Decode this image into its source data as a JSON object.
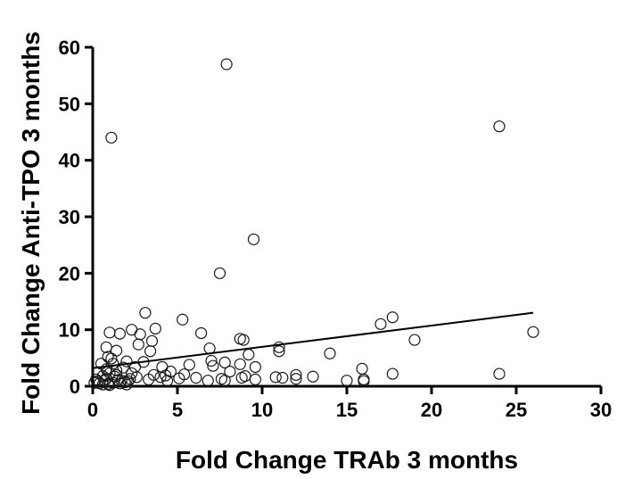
{
  "chart_data": {
    "type": "scatter",
    "xlabel": "Fold Change TRAb 3 months",
    "ylabel": "Fold Change Anti-TPO 3 months",
    "xlim": [
      0,
      30
    ],
    "ylim": [
      0,
      60
    ],
    "xticks": [
      0,
      5,
      10,
      15,
      20,
      25,
      30
    ],
    "yticks": [
      0,
      10,
      20,
      30,
      40,
      50,
      60
    ],
    "marker": "open-circle",
    "trendline": {
      "x": [
        0,
        26
      ],
      "y": [
        3.2,
        13.0
      ]
    },
    "points": [
      {
        "x": 7.9,
        "y": 57
      },
      {
        "x": 24.0,
        "y": 46
      },
      {
        "x": 1.1,
        "y": 44
      },
      {
        "x": 9.5,
        "y": 26
      },
      {
        "x": 7.5,
        "y": 20
      },
      {
        "x": 3.1,
        "y": 13
      },
      {
        "x": 5.3,
        "y": 11.8
      },
      {
        "x": 17.7,
        "y": 12.2
      },
      {
        "x": 17.0,
        "y": 11.0
      },
      {
        "x": 2.3,
        "y": 10.0
      },
      {
        "x": 3.7,
        "y": 10.2
      },
      {
        "x": 1.6,
        "y": 9.3
      },
      {
        "x": 1.0,
        "y": 9.5
      },
      {
        "x": 2.8,
        "y": 9.2
      },
      {
        "x": 6.4,
        "y": 9.4
      },
      {
        "x": 26.0,
        "y": 9.6
      },
      {
        "x": 8.7,
        "y": 8.4
      },
      {
        "x": 8.9,
        "y": 8.2
      },
      {
        "x": 19.0,
        "y": 8.2
      },
      {
        "x": 3.5,
        "y": 8.0
      },
      {
        "x": 2.7,
        "y": 7.4
      },
      {
        "x": 0.8,
        "y": 6.9
      },
      {
        "x": 1.4,
        "y": 6.3
      },
      {
        "x": 3.4,
        "y": 6.2
      },
      {
        "x": 6.9,
        "y": 6.7
      },
      {
        "x": 11.0,
        "y": 6.9
      },
      {
        "x": 11.0,
        "y": 6.2
      },
      {
        "x": 14.0,
        "y": 5.8
      },
      {
        "x": 9.2,
        "y": 5.6
      },
      {
        "x": 0.9,
        "y": 5.2
      },
      {
        "x": 1.1,
        "y": 4.9
      },
      {
        "x": 2.0,
        "y": 4.4
      },
      {
        "x": 3.0,
        "y": 4.3
      },
      {
        "x": 7.0,
        "y": 4.5
      },
      {
        "x": 7.8,
        "y": 4.2
      },
      {
        "x": 0.5,
        "y": 4.0
      },
      {
        "x": 1.2,
        "y": 4.0
      },
      {
        "x": 5.7,
        "y": 3.8
      },
      {
        "x": 7.1,
        "y": 3.6
      },
      {
        "x": 8.7,
        "y": 3.9
      },
      {
        "x": 9.6,
        "y": 3.4
      },
      {
        "x": 1.8,
        "y": 3.3
      },
      {
        "x": 2.5,
        "y": 3.4
      },
      {
        "x": 4.1,
        "y": 3.4
      },
      {
        "x": 0.8,
        "y": 3.0
      },
      {
        "x": 1.4,
        "y": 2.8
      },
      {
        "x": 4.6,
        "y": 2.6
      },
      {
        "x": 15.9,
        "y": 3.1
      },
      {
        "x": 0.3,
        "y": 2.5
      },
      {
        "x": 1.0,
        "y": 2.3
      },
      {
        "x": 8.1,
        "y": 2.6
      },
      {
        "x": 12.0,
        "y": 2.0
      },
      {
        "x": 17.7,
        "y": 2.2
      },
      {
        "x": 24.0,
        "y": 2.2
      },
      {
        "x": 2.3,
        "y": 2.3
      },
      {
        "x": 3.6,
        "y": 2.0
      },
      {
        "x": 4.3,
        "y": 1.9
      },
      {
        "x": 5.4,
        "y": 2.1
      },
      {
        "x": 9.0,
        "y": 1.8
      },
      {
        "x": 0.6,
        "y": 1.8
      },
      {
        "x": 1.3,
        "y": 1.7
      },
      {
        "x": 2.6,
        "y": 1.6
      },
      {
        "x": 4.0,
        "y": 1.6
      },
      {
        "x": 5.1,
        "y": 1.4
      },
      {
        "x": 6.1,
        "y": 1.5
      },
      {
        "x": 7.6,
        "y": 1.3
      },
      {
        "x": 8.8,
        "y": 1.5
      },
      {
        "x": 10.8,
        "y": 1.6
      },
      {
        "x": 11.2,
        "y": 1.5
      },
      {
        "x": 12.0,
        "y": 1.3
      },
      {
        "x": 13.0,
        "y": 1.7
      },
      {
        "x": 0.2,
        "y": 1.2
      },
      {
        "x": 0.7,
        "y": 1.0
      },
      {
        "x": 1.5,
        "y": 1.1
      },
      {
        "x": 2.2,
        "y": 1.3
      },
      {
        "x": 3.3,
        "y": 1.2
      },
      {
        "x": 4.4,
        "y": 1.0
      },
      {
        "x": 7.8,
        "y": 1.0
      },
      {
        "x": 9.6,
        "y": 1.2
      },
      {
        "x": 15.0,
        "y": 1.0
      },
      {
        "x": 16.0,
        "y": 1.2
      },
      {
        "x": 0.1,
        "y": 0.6
      },
      {
        "x": 0.4,
        "y": 0.5
      },
      {
        "x": 0.9,
        "y": 0.4
      },
      {
        "x": 1.2,
        "y": 0.6
      },
      {
        "x": 1.6,
        "y": 0.5
      },
      {
        "x": 1.9,
        "y": 0.7
      },
      {
        "x": 0.6,
        "y": 0.3
      },
      {
        "x": 1.0,
        "y": 0.2
      },
      {
        "x": 2.0,
        "y": 0.3
      },
      {
        "x": 0.3,
        "y": 0.9
      },
      {
        "x": 1.7,
        "y": 1.0
      },
      {
        "x": 2.1,
        "y": 0.9
      },
      {
        "x": 0.8,
        "y": 1.3
      },
      {
        "x": 1.4,
        "y": 2.0
      },
      {
        "x": 6.8,
        "y": 1.0
      },
      {
        "x": 16.0,
        "y": 0.9
      }
    ]
  }
}
